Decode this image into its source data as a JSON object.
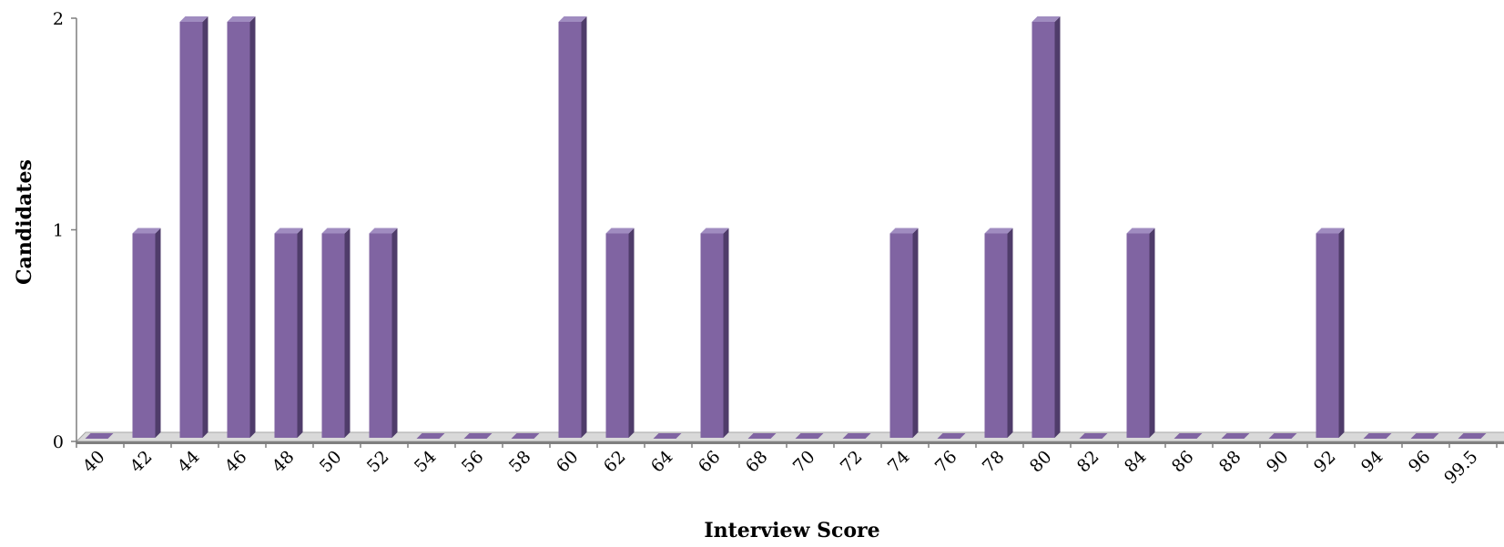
{
  "chart_data": {
    "type": "bar",
    "style": "3d-column",
    "categories": [
      "40",
      "42",
      "44",
      "46",
      "48",
      "50",
      "52",
      "54",
      "56",
      "58",
      "60",
      "62",
      "64",
      "66",
      "68",
      "70",
      "72",
      "74",
      "76",
      "78",
      "80",
      "82",
      "84",
      "86",
      "88",
      "90",
      "92",
      "94",
      "96",
      "99.5"
    ],
    "values": [
      0,
      1,
      2,
      2,
      1,
      1,
      1,
      0,
      0,
      0,
      2,
      1,
      0,
      1,
      0,
      0,
      0,
      1,
      0,
      1,
      2,
      0,
      1,
      0,
      0,
      0,
      1,
      0,
      0,
      0
    ],
    "title": "",
    "xlabel": "Interview Score",
    "ylabel": "Candidates",
    "ylim": [
      0,
      2
    ],
    "yticks": [
      0,
      1,
      2
    ],
    "grid": false,
    "legend": "none",
    "colors": {
      "front": "#8064a2",
      "side": "#4f3c6a",
      "top": "#a08cc0",
      "floor_front": "#7f7f7f",
      "floor_top": "#d9d9d9"
    }
  }
}
